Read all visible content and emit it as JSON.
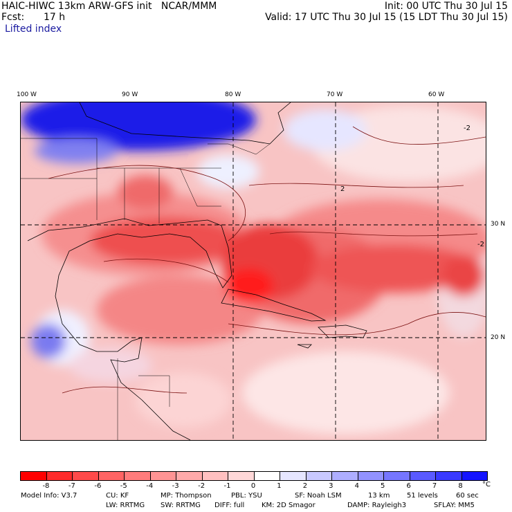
{
  "header": {
    "model_line": "HAIC-HIWC 13km ARW-GFS init   NCAR/MMM",
    "fcst_label": "Fcst:",
    "fcst_value": "17 h",
    "field_name": "Lifted index",
    "init": "Init: 00 UTC Thu 30 Jul 15",
    "valid": "Valid: 17 UTC Thu 30 Jul 15 (15 LDT Thu 30 Jul 15)"
  },
  "map": {
    "lon_labels": [
      "100 W",
      "90 W",
      "80 W",
      "70 W",
      "60 W"
    ],
    "lat_labels": [
      "30 N",
      "20 N"
    ],
    "contour_labels": [
      "-2",
      "2",
      "-2"
    ]
  },
  "colorbar": {
    "unit": "°C",
    "ticks": [
      "-8",
      "-7",
      "-6",
      "-5",
      "-4",
      "-3",
      "-2",
      "-1",
      "0",
      "1",
      "2",
      "3",
      "4",
      "5",
      "6",
      "7",
      "8"
    ],
    "colors": [
      "#ff0000",
      "#ff2b2b",
      "#ff4a4a",
      "#ff6464",
      "#ff7c7c",
      "#ff9494",
      "#ffaaaa",
      "#ffc0c0",
      "#ffd8d8",
      "#ffffff",
      "#e6e6ff",
      "#c9c9ff",
      "#aeaeff",
      "#9292ff",
      "#7676ff",
      "#5a5aff",
      "#3a3aff",
      "#1414ff"
    ]
  },
  "footer": {
    "model_info": "Model Info: V3.7",
    "cu": "CU: KF",
    "mp": "MP: Thompson",
    "pbl": "PBL: YSU",
    "sf": "SF: Noah LSM",
    "res": "13 km",
    "levels": "51 levels",
    "dt": "60 sec",
    "lw": "LW: RRTMG",
    "sw": "SW: RRTMG",
    "diff": "DIFF: full",
    "km": "KM: 2D Smagor",
    "damp": "DAMP: Rayleigh3",
    "sflay": "SFLAY: MM5"
  }
}
